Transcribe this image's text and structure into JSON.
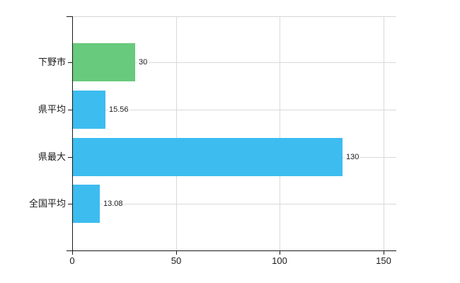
{
  "chart_data": {
    "type": "bar",
    "orientation": "horizontal",
    "title": "",
    "xlabel": "",
    "ylabel": "",
    "categories": [
      "下野市",
      "県平均",
      "県最大",
      "全国平均"
    ],
    "values": [
      30,
      15.56,
      130,
      13.08
    ],
    "value_labels": [
      "30",
      "15.56",
      "130",
      "13.08"
    ],
    "series": [
      {
        "name": "value",
        "values": [
          30,
          15.56,
          130,
          13.08
        ],
        "colors": [
          "#68ca7c",
          "#3dbcf0",
          "#3dbcf0",
          "#3dbcf0"
        ]
      }
    ],
    "xlim": [
      0,
      156
    ],
    "x_ticks": [
      0,
      50,
      100,
      150
    ],
    "x_tick_labels": [
      "0",
      "50",
      "100",
      "150"
    ],
    "grid": true,
    "legend": false
  },
  "colors": {
    "highlight_bar": "#68ca7c",
    "default_bar": "#3dbcf0",
    "grid": "#d9d9d9",
    "axis": "#1a1a1a",
    "text": "#1a1a1a",
    "background": "#ffffff"
  }
}
